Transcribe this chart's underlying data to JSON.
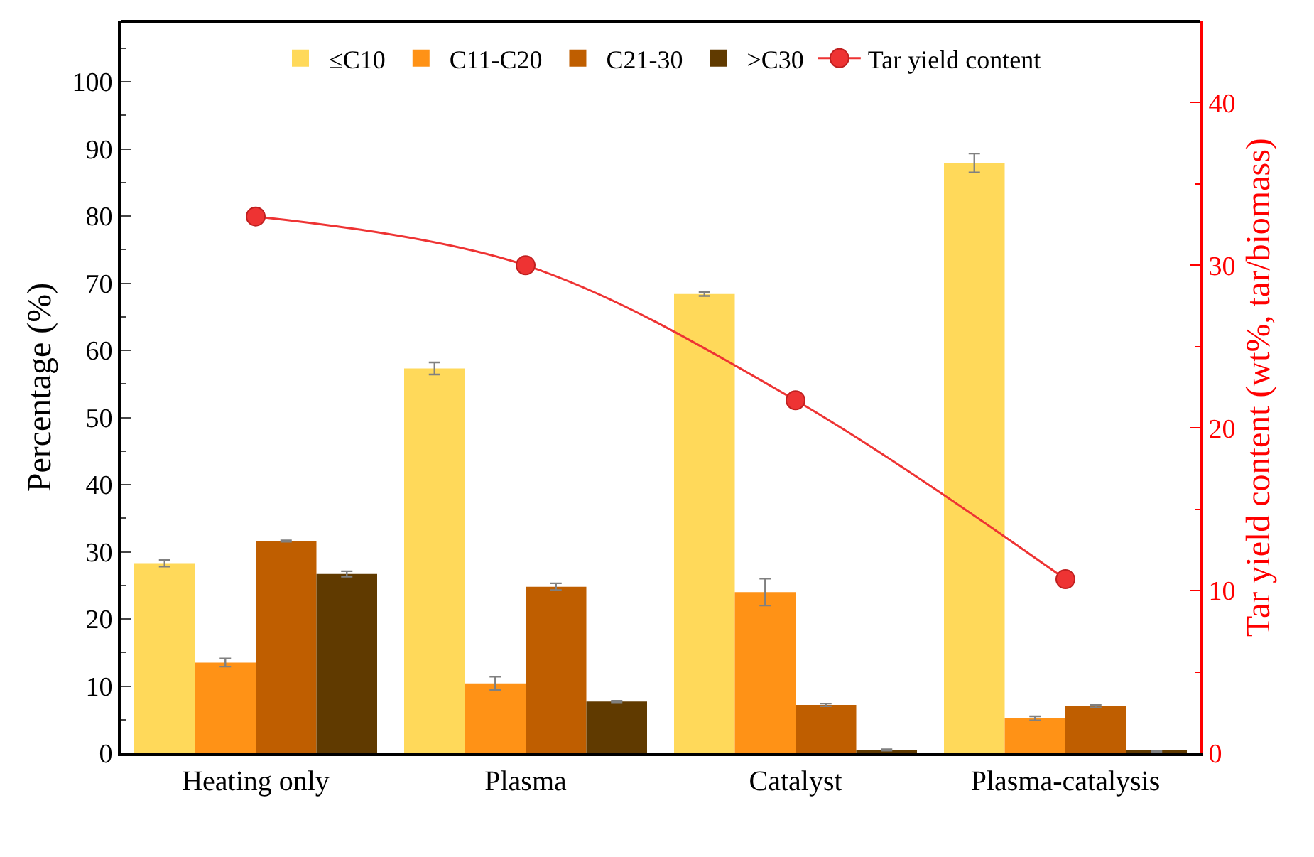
{
  "chart_data": {
    "type": "bar",
    "xlabel": null,
    "ylabel": "Percentage (%)",
    "y2label": "Tar yield content (wt%, tar/biomass)",
    "categories": [
      "Heating only",
      "Plasma",
      "Catalyst",
      "Plasma-catalysis"
    ],
    "series": [
      {
        "name": "≤C10",
        "color": "#ffd95a",
        "values": [
          28.3,
          57.3,
          68.4,
          87.9
        ],
        "errors": [
          0.5,
          0.9,
          0.3,
          1.4
        ]
      },
      {
        "name": "C11-C20",
        "color": "#ff9216",
        "values": [
          13.5,
          10.4,
          24.0,
          5.2
        ],
        "errors": [
          0.6,
          1.0,
          2.0,
          0.3
        ]
      },
      {
        "name": "C21-30",
        "color": "#bf5e00",
        "values": [
          31.6,
          24.8,
          7.2,
          7.0
        ],
        "errors": [
          0.1,
          0.5,
          0.2,
          0.2
        ]
      },
      {
        "name": ">C30",
        "color": "#603a00",
        "values": [
          26.7,
          7.7,
          0.5,
          0.3
        ],
        "errors": [
          0.4,
          0.1,
          0.1,
          0.1
        ]
      },
      {
        "name": "Tar yield content",
        "type": "line",
        "axis": "y2",
        "color": "#ee3333",
        "values": [
          33.0,
          30.0,
          21.7,
          10.7
        ],
        "marker": "circle"
      }
    ],
    "ylim": [
      0,
      109
    ],
    "yticks": [
      0,
      10,
      20,
      30,
      40,
      50,
      60,
      70,
      80,
      90,
      100
    ],
    "y2lim": [
      0,
      45
    ],
    "y2ticks": [
      0,
      10,
      20,
      30,
      40
    ],
    "legend": "top"
  }
}
